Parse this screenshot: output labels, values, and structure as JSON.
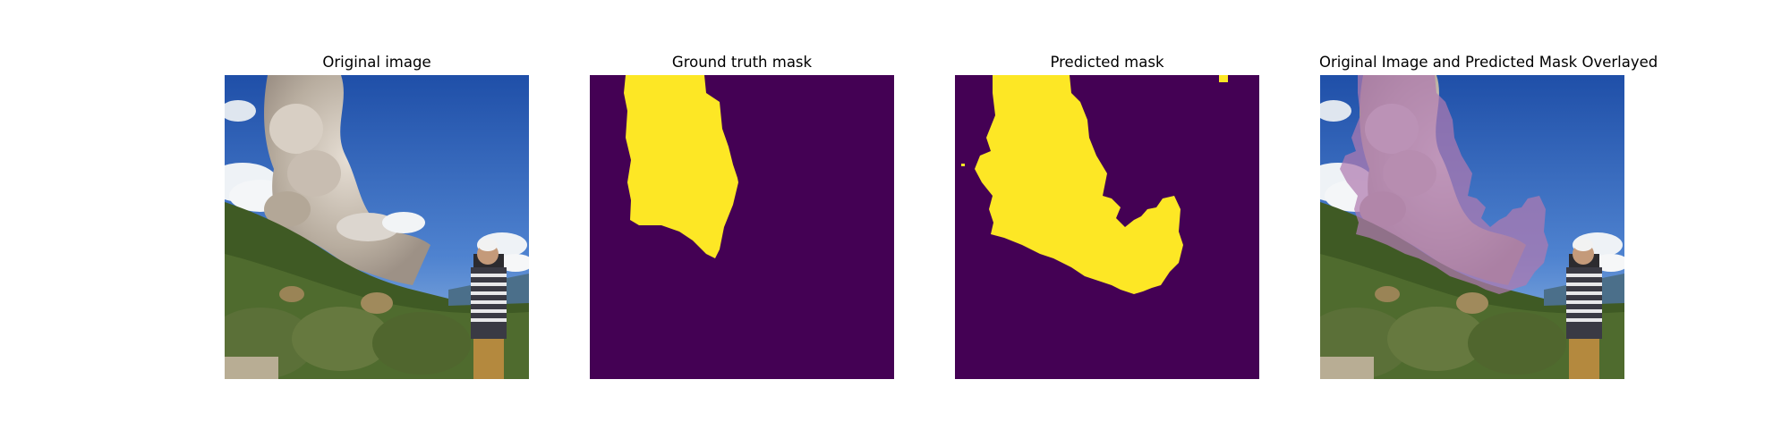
{
  "panels": [
    {
      "title": "Original image"
    },
    {
      "title": "Ground truth mask"
    },
    {
      "title": "Predicted mask"
    },
    {
      "title": "Original Image and Predicted Mask Overlayed"
    }
  ],
  "colors": {
    "mask_background": "#440154",
    "mask_foreground": "#fde725",
    "sky": "#2f62b8",
    "smoke": "#c9c0b6",
    "hillside": "#3f5a24",
    "overlay_tint": "#b07ab0"
  }
}
